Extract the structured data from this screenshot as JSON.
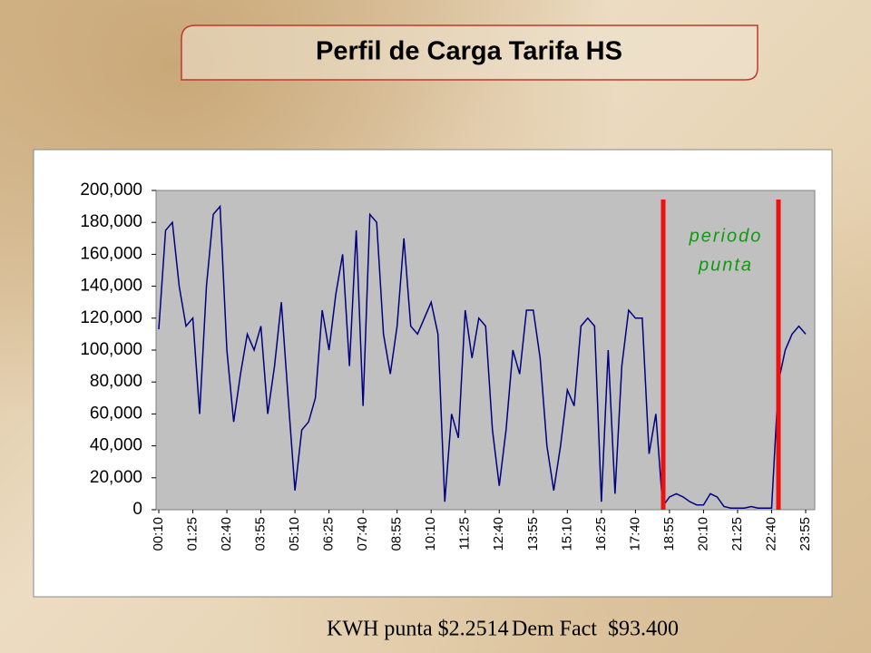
{
  "chart_data": {
    "type": "line",
    "title": "Perfil de Carga Tarifa HS",
    "categories": [
      "00:10",
      null,
      null,
      null,
      null,
      "01:25",
      null,
      null,
      null,
      null,
      "02:40",
      null,
      null,
      null,
      null,
      "03:55",
      null,
      null,
      null,
      null,
      "05:10",
      null,
      null,
      null,
      null,
      "06:25",
      null,
      null,
      null,
      null,
      "07:40",
      null,
      null,
      null,
      null,
      "08:55",
      null,
      null,
      null,
      null,
      "10:10",
      null,
      null,
      null,
      null,
      "11:25",
      null,
      null,
      null,
      null,
      "12:40",
      null,
      null,
      null,
      null,
      "13:55",
      null,
      null,
      null,
      null,
      "15:10",
      null,
      null,
      null,
      null,
      "16:25",
      null,
      null,
      null,
      null,
      "17:40",
      null,
      null,
      null,
      null,
      "18:55",
      null,
      null,
      null,
      null,
      "20:10",
      null,
      null,
      null,
      null,
      "21:25",
      null,
      null,
      null,
      null,
      "22:40",
      null,
      null,
      null,
      null,
      "23:55"
    ],
    "values": [
      113000,
      175000,
      180000,
      140000,
      115000,
      120000,
      60000,
      140000,
      185000,
      190000,
      100000,
      55000,
      85000,
      110000,
      100000,
      115000,
      60000,
      90000,
      130000,
      70000,
      12000,
      50000,
      55000,
      70000,
      125000,
      100000,
      135000,
      160000,
      90000,
      175000,
      65000,
      185000,
      180000,
      110000,
      85000,
      115000,
      170000,
      115000,
      110000,
      120000,
      130000,
      110000,
      5000,
      60000,
      45000,
      125000,
      95000,
      120000,
      115000,
      50000,
      15000,
      50000,
      100000,
      85000,
      125000,
      125000,
      95000,
      40000,
      12000,
      40000,
      75000,
      65000,
      115000,
      120000,
      115000,
      5000,
      100000,
      10000,
      90000,
      125000,
      120000,
      120000,
      35000,
      60000,
      2000,
      8000,
      10000,
      8000,
      5000,
      3000,
      3000,
      10000,
      8000,
      2000,
      1000,
      1000,
      1000,
      2000,
      1000,
      1000,
      1000,
      80000,
      100000,
      110000,
      115000,
      110000
    ],
    "color": "#000080",
    "ylim": [
      0,
      200000
    ],
    "yticks": [
      0,
      {
        "value": 20000,
        "label": "20,000"
      },
      {
        "value": 40000,
        "label": "40,000"
      },
      {
        "value": 60000,
        "label": "60,000"
      },
      {
        "value": 80000,
        "label": "80,000"
      },
      {
        "value": 100000,
        "label": "100,000"
      },
      {
        "value": 120000,
        "label": "120,000"
      },
      {
        "value": 140000,
        "label": "140,000"
      },
      {
        "value": 160000,
        "label": "160,000"
      },
      {
        "value": 180000,
        "label": "180,000"
      },
      {
        "value": 200000,
        "label": "200,000"
      }
    ],
    "grid": false,
    "annotation": [
      "periodo",
      "punta"
    ]
  },
  "footer": [
    "KWH punta $2.2514",
    "Dem Fact  $93.400"
  ]
}
